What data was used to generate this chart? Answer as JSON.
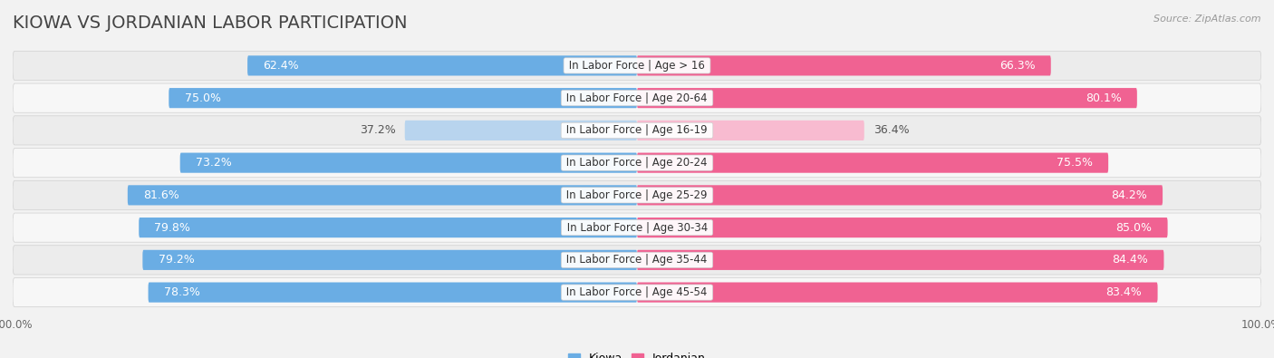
{
  "title": "KIOWA VS JORDANIAN LABOR PARTICIPATION",
  "source": "Source: ZipAtlas.com",
  "categories": [
    "In Labor Force | Age > 16",
    "In Labor Force | Age 20-64",
    "In Labor Force | Age 16-19",
    "In Labor Force | Age 20-24",
    "In Labor Force | Age 25-29",
    "In Labor Force | Age 30-34",
    "In Labor Force | Age 35-44",
    "In Labor Force | Age 45-54"
  ],
  "kiowa_values": [
    62.4,
    75.0,
    37.2,
    73.2,
    81.6,
    79.8,
    79.2,
    78.3
  ],
  "jordanian_values": [
    66.3,
    80.1,
    36.4,
    75.5,
    84.2,
    85.0,
    84.4,
    83.4
  ],
  "kiowa_color": "#6aade4",
  "kiowa_light_color": "#b8d4ee",
  "jordanian_color": "#f06292",
  "jordanian_light_color": "#f8bbd0",
  "background_color": "#f2f2f2",
  "row_bg_color": "#e8e8e8",
  "row_bg_highlight": "#ffffff",
  "max_value": 100.0,
  "bar_height": 0.62,
  "title_fontsize": 14,
  "label_fontsize": 9,
  "category_fontsize": 8.5,
  "legend_fontsize": 9,
  "axis_label_fontsize": 8.5
}
